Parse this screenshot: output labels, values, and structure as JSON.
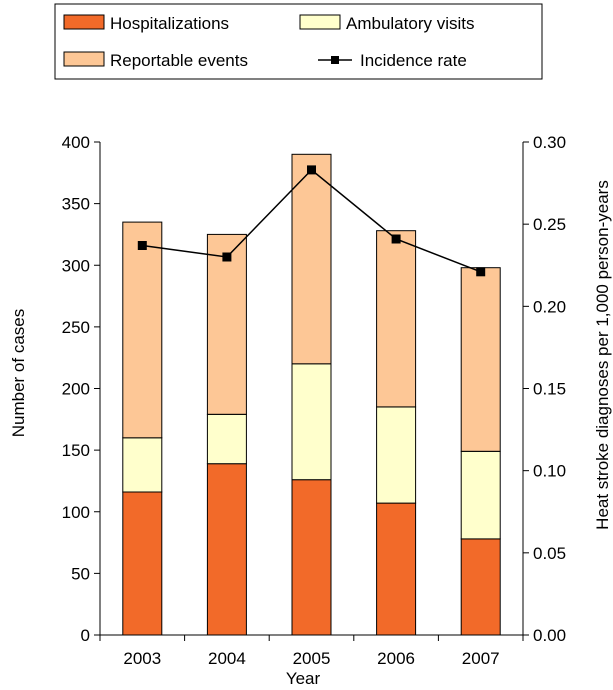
{
  "chart_data": {
    "type": "bar",
    "stacked": true,
    "categories": [
      "2003",
      "2004",
      "2005",
      "2006",
      "2007"
    ],
    "series": [
      {
        "name": "Hospitalizations",
        "values": [
          116,
          139,
          126,
          107,
          78
        ],
        "color": "#f26a29"
      },
      {
        "name": "Ambulatory visits",
        "values": [
          44,
          40,
          94,
          78,
          71
        ],
        "color": "#ffffcc"
      },
      {
        "name": "Reportable events",
        "values": [
          175,
          146,
          170,
          143,
          149
        ],
        "color": "#fdc796"
      }
    ],
    "line_series": {
      "name": "Incidence rate",
      "axis": "right",
      "values": [
        0.237,
        0.23,
        0.283,
        0.241,
        0.221
      ],
      "color": "#000000"
    },
    "xlabel": "Year",
    "ylabel": "Number of cases",
    "y2label": "Heat stroke diagnoses per 1,000 person-years",
    "ylim": [
      0,
      400
    ],
    "y2lim": [
      0,
      0.3
    ],
    "yticks": [
      "0",
      "50",
      "100",
      "150",
      "200",
      "250",
      "300",
      "350",
      "400"
    ],
    "y2ticks": [
      "0.00",
      "0.05",
      "0.10",
      "0.15",
      "0.20",
      "0.25",
      "0.30"
    ],
    "grid": false,
    "legend_position": "top"
  }
}
